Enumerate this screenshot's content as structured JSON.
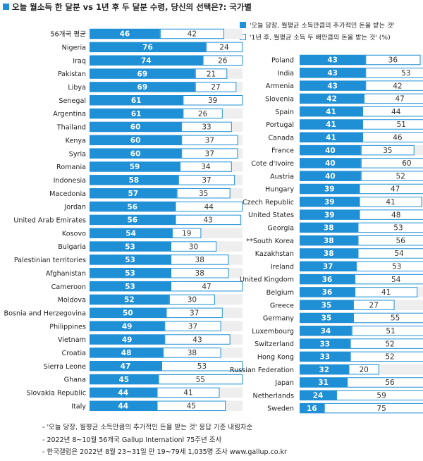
{
  "title": "오늘 월소득 한 달분 vs 1년 후 두 달분 수령, 당신의 선택은?: 국가별",
  "legend": {
    "series_a": "'오늘 당장, 월평균 소득만큼의 추가적인 돈을 받는 것'",
    "series_b": "'1년 후, 월평균 소득 두 배만큼의 돈을 받는 것' (%)"
  },
  "notes": [
    "- '오늘 당장, 월평균 소득만큼의 추가적인 돈을 받는 것' 응답 기준 내림차순",
    "- 2022년 8~10월 56개국 Gallup Internationl 75주년 조사",
    "- 한국갤럽은 2022년 8월 23~31일 만 19~79세 1,035명 조사 www.gallup.co.kr"
  ],
  "colors": {
    "today": "#1f8fd6",
    "later_border": "#1f8fd6",
    "gap": "#eeeeee"
  },
  "chart_data": [
    {
      "type": "bar",
      "orientation": "horizontal",
      "stacked": true,
      "xlim": [
        0,
        100
      ],
      "categories": [
        "56개국 평균",
        "Nigeria",
        "Iraq",
        "Pakistan",
        "Libya",
        "Senegal",
        "Argentina",
        "Thailand",
        "Kenya",
        "Syria",
        "Romania",
        "Indonesia",
        "Macedonia",
        "Jordan",
        "United Arab Emirates",
        "Kosovo",
        "Bulgaria",
        "Palestinian territories",
        "Afghanistan",
        "Cameroon",
        "Moldova",
        "Bosnia and Herzegovina",
        "Philippines",
        "Vietnam",
        "Croatia",
        "Sierra Leone",
        "Ghana",
        "Slovakia Republic",
        "Italy"
      ],
      "series": [
        {
          "name": "today",
          "values": [
            46,
            76,
            74,
            69,
            69,
            61,
            61,
            60,
            60,
            60,
            59,
            58,
            57,
            56,
            56,
            54,
            53,
            53,
            53,
            53,
            52,
            50,
            49,
            49,
            48,
            47,
            45,
            44,
            44
          ]
        },
        {
          "name": "later",
          "values": [
            42,
            24,
            26,
            21,
            27,
            39,
            26,
            33,
            37,
            37,
            34,
            37,
            35,
            44,
            43,
            19,
            30,
            38,
            38,
            47,
            30,
            37,
            37,
            43,
            38,
            53,
            55,
            41,
            45
          ]
        }
      ]
    },
    {
      "type": "bar",
      "orientation": "horizontal",
      "stacked": true,
      "xlim": [
        0,
        100
      ],
      "categories": [
        "Poland",
        "India",
        "Armenia",
        "Slovenia",
        "Spain",
        "Portugal",
        "Canada",
        "France",
        "Cote d'Ivoire",
        "Austria",
        "Hungary",
        "Czech Republic",
        "United States",
        "Georgia",
        "**South Korea",
        "Kazakhstan",
        "Ireland",
        "United Kingdom",
        "Belgium",
        "Greece",
        "Germany",
        "Luxembourg",
        "Switzerland",
        "Hong Kong",
        "Russian Federation",
        "Japan",
        "Netherlands",
        "Sweden"
      ],
      "series": [
        {
          "name": "today",
          "values": [
            43,
            43,
            43,
            42,
            41,
            41,
            41,
            40,
            40,
            40,
            39,
            39,
            39,
            38,
            38,
            38,
            37,
            36,
            36,
            35,
            35,
            34,
            33,
            33,
            32,
            31,
            24,
            16
          ]
        },
        {
          "name": "later",
          "values": [
            36,
            53,
            42,
            47,
            44,
            51,
            46,
            35,
            60,
            52,
            47,
            41,
            48,
            53,
            56,
            54,
            53,
            54,
            41,
            27,
            55,
            51,
            52,
            52,
            20,
            56,
            59,
            75
          ]
        }
      ]
    }
  ]
}
